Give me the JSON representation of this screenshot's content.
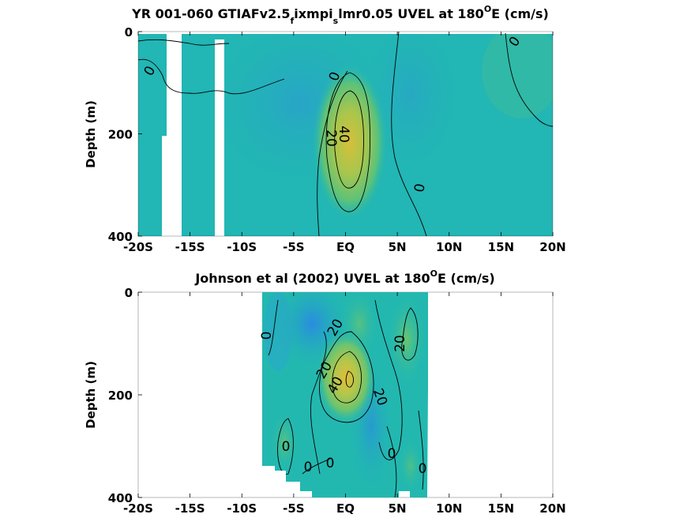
{
  "chart_data": [
    {
      "type": "heatmap",
      "title_parts": [
        "YR 001-060 GTIAFv2.5",
        "f",
        "ixmpi",
        "s",
        "lmr0.05 UVEL at 180",
        "O",
        "E (cm/s)"
      ],
      "ylabel": "Depth (m)",
      "xticks": [
        "-20S",
        "-15S",
        "-10S",
        "-5S",
        "EQ",
        "5N",
        "10N",
        "15N",
        "20N"
      ],
      "yticks": [
        "0",
        "200",
        "400"
      ],
      "xlim": [
        -20,
        20
      ],
      "ylim": [
        0,
        400
      ],
      "colors": {
        "core": "#d6bf3a",
        "mid": "#8cc95a",
        "background": "#22b8b0",
        "westward": "#2f8fe0"
      },
      "core_latitude": 0.8,
      "core_depth": 180,
      "core_value": 45,
      "contour_labels": [
        "0",
        "0",
        "40",
        "20",
        "0",
        "0"
      ],
      "contour_levels": [
        0,
        20,
        40
      ]
    },
    {
      "type": "heatmap",
      "title_parts": [
        "Johnson et al (2002) UVEL at 180",
        "O",
        "E (cm/s)"
      ],
      "ylabel": "Depth (m)",
      "xticks": [
        "-20S",
        "-15S",
        "-10S",
        "-5S",
        "EQ",
        "5N",
        "10N",
        "15N",
        "20N"
      ],
      "yticks": [
        "0",
        "200",
        "400"
      ],
      "xlim": [
        -20,
        20
      ],
      "ylim": [
        0,
        400
      ],
      "data_extent_lat": [
        -8,
        8
      ],
      "colors": {
        "core": "#e0bd3a",
        "mid": "#8cc95a",
        "background": "#22b8b0",
        "westward": "#2f8fe0"
      },
      "core_latitude": 0.5,
      "core_depth": 170,
      "core_value": 55,
      "contour_labels": [
        "0",
        "20",
        "20",
        "40",
        "20",
        "20",
        "0",
        "0",
        "0",
        "0",
        "0"
      ],
      "contour_levels": [
        0,
        20,
        40
      ]
    }
  ]
}
